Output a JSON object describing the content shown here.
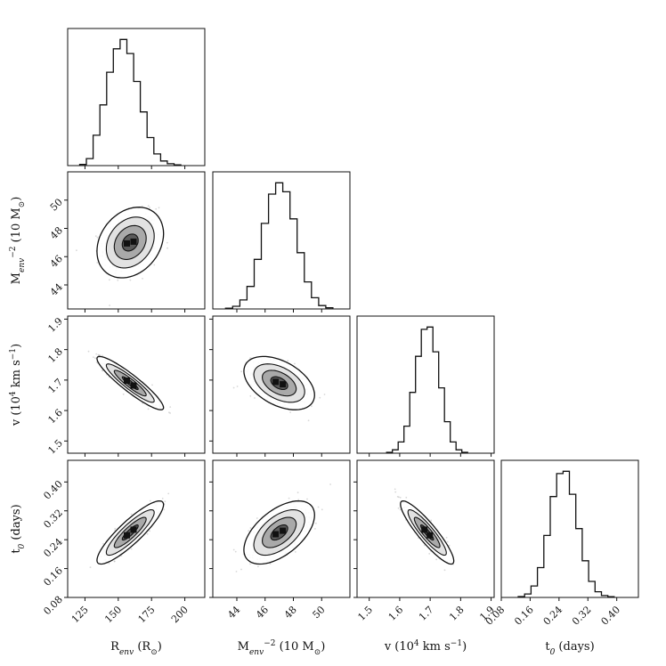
{
  "chart_data": {
    "type": "corner",
    "parameters": [
      {
        "key": "R",
        "label_main": "R",
        "label_sub": "env",
        "label_rest": " (R",
        "label_unit_sub": "⊙",
        "label_close": ")",
        "range": [
          112,
          215
        ],
        "ticks": [
          125,
          150,
          175,
          200
        ],
        "tick_labels": [
          "125",
          "150",
          "175",
          "200"
        ],
        "mean": 159,
        "sd": 10
      },
      {
        "key": "M",
        "label_main": "M",
        "label_sub": "env",
        "label_rest": " (10",
        "label_sup": "−2",
        "label_rest2": " M",
        "label_unit_sub": "⊙",
        "label_close": ")",
        "range": [
          42.3,
          52.0
        ],
        "ticks": [
          44,
          46,
          48,
          50
        ],
        "tick_labels": [
          "44",
          "46",
          "48",
          "50"
        ],
        "mean": 47.0,
        "sd": 1.0
      },
      {
        "key": "v",
        "label_main": "v (10",
        "label_sup": "4",
        "label_rest": " km s",
        "label_sup2": "−1",
        "label_close": ")",
        "range": [
          1.46,
          1.91
        ],
        "ticks": [
          1.5,
          1.6,
          1.7,
          1.8,
          1.9
        ],
        "tick_labels": [
          "1.5",
          "1.6",
          "1.7",
          "1.8",
          "1.9"
        ],
        "mean": 1.69,
        "sd": 0.035
      },
      {
        "key": "t0",
        "label_main": "t",
        "label_sub": "0",
        "label_rest": " (days)",
        "range": [
          0.08,
          0.46
        ],
        "ticks": [
          0.08,
          0.16,
          0.24,
          0.32,
          0.4
        ],
        "tick_labels": [
          "0.08",
          "0.16",
          "0.24",
          "0.32",
          "0.40"
        ],
        "mean": 0.26,
        "sd": 0.035
      }
    ],
    "correlations": {
      "M_R": 0.25,
      "v_R": -0.92,
      "v_M": -0.45,
      "t0_R": 0.88,
      "t0_M": 0.55,
      "t0_v": -0.9
    },
    "histograms": {
      "R": [
        0.5,
        3.0,
        13.0,
        26.0,
        40.0,
        50.0,
        54.0,
        48.0,
        36.0,
        23.0,
        12.0,
        5.0,
        2.0,
        0.8,
        0.3
      ],
      "M": [
        0.3,
        1.2,
        4.0,
        10.0,
        22.0,
        38.0,
        51.0,
        56.0,
        52.0,
        40.0,
        25.0,
        12.0,
        5.0,
        1.5,
        0.5
      ],
      "v": [
        0.4,
        1.5,
        5.0,
        12.0,
        27.0,
        43.0,
        55.0,
        56.0,
        45.0,
        29.0,
        14.0,
        5.0,
        1.5,
        0.4
      ],
      "t0": [
        0.4,
        1.5,
        5.0,
        13.0,
        27.0,
        44.0,
        54.0,
        55.0,
        45.0,
        30.0,
        16.0,
        7.0,
        2.5,
        0.8,
        0.3
      ]
    },
    "grid": false
  }
}
